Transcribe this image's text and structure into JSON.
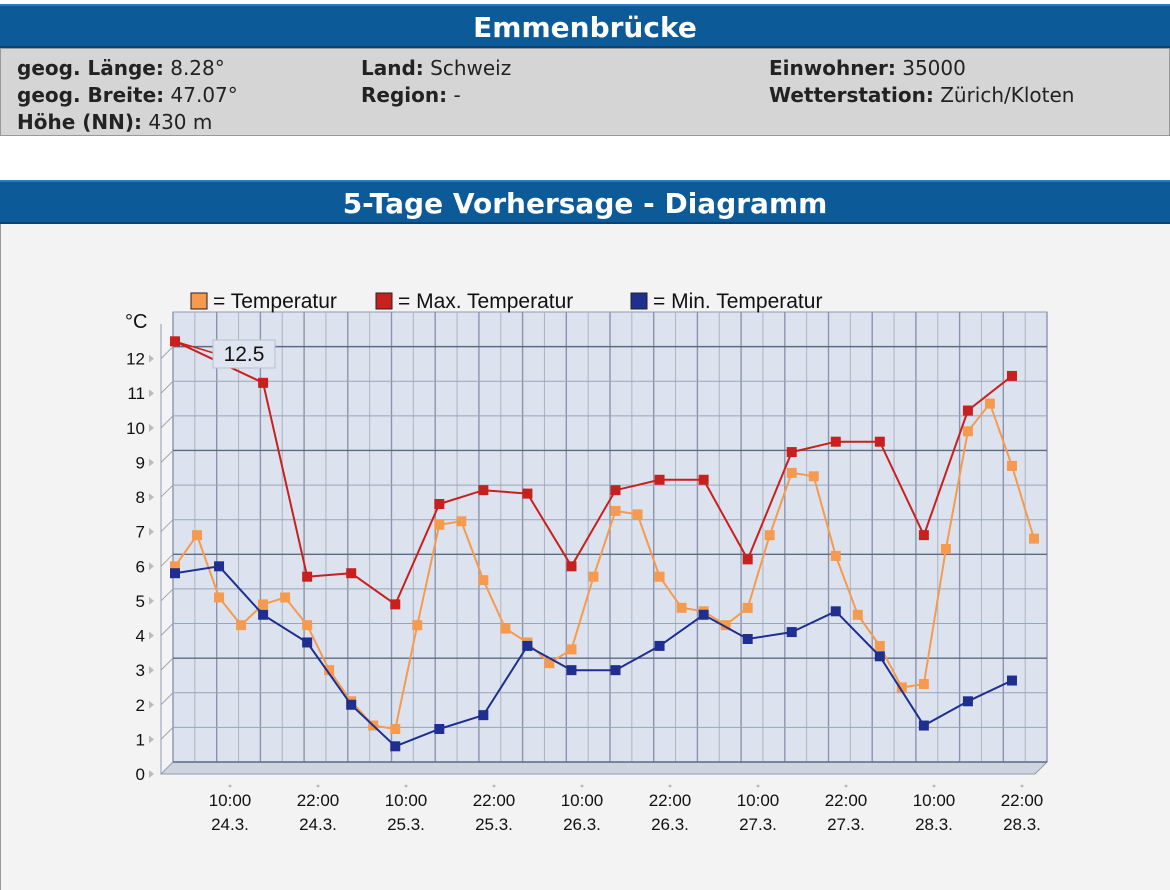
{
  "location": {
    "title": "Emmenbrücke",
    "info": {
      "col1": [
        {
          "label": "geog. Länge:",
          "value": "8.28°"
        },
        {
          "label": "geog. Breite:",
          "value": "47.07°"
        },
        {
          "label": "Höhe (NN):",
          "value": "430 m"
        }
      ],
      "col2": [
        {
          "label": "Land:",
          "value": "Schweiz"
        },
        {
          "label": "Region:",
          "value": "-"
        }
      ],
      "col3": [
        {
          "label": "Einwohner:",
          "value": "35000"
        },
        {
          "label": "Wetterstation:",
          "value": "Zürich/Kloten"
        }
      ]
    }
  },
  "chart_panel": {
    "title": "5-Tage Vorhersage - Diagramm"
  },
  "chart_data": {
    "type": "line",
    "ylabel": "°C",
    "ylim": [
      0,
      13
    ],
    "yticks": [
      "0",
      "1",
      "2",
      "3",
      "4",
      "5",
      "6",
      "7",
      "8",
      "9",
      "10",
      "11",
      "12"
    ],
    "x_tick_labels": [
      [
        "10:00",
        "24.3."
      ],
      [
        "22:00",
        "24.3."
      ],
      [
        "10:00",
        "25.3."
      ],
      [
        "22:00",
        "25.3."
      ],
      [
        "10:00",
        "26.3."
      ],
      [
        "22:00",
        "26.3."
      ],
      [
        "10:00",
        "27.3."
      ],
      [
        "22:00",
        "27.3."
      ],
      [
        "10:00",
        "28.3."
      ],
      [
        "22:00",
        "28.3."
      ]
    ],
    "grid": true,
    "legend_position": "top",
    "annotation": {
      "text": "12.5",
      "target": "Max. Temperatur",
      "index": 0
    },
    "series": [
      {
        "name": "Temperatur",
        "color": "#f59a4f",
        "values": [
          6.0,
          6.9,
          5.1,
          4.3,
          4.9,
          5.1,
          4.3,
          3.0,
          2.1,
          1.4,
          1.3,
          4.3,
          7.2,
          7.3,
          5.6,
          4.2,
          3.8,
          3.2,
          3.6,
          5.7,
          7.6,
          7.5,
          5.7,
          4.8,
          4.7,
          4.3,
          4.8,
          6.9,
          8.7,
          8.6,
          6.3,
          4.6,
          3.7,
          2.5,
          2.6,
          6.5,
          9.9,
          10.7,
          8.9,
          6.8
        ]
      },
      {
        "name": "Max. Temperatur",
        "color": "#c8201e",
        "points": [
          [
            0,
            12.5
          ],
          [
            4,
            11.3
          ],
          [
            6,
            5.7
          ],
          [
            8,
            5.8
          ],
          [
            10,
            4.9
          ],
          [
            12,
            7.8
          ],
          [
            14,
            8.2
          ],
          [
            16,
            8.1
          ],
          [
            18,
            6.0
          ],
          [
            20,
            8.2
          ],
          [
            22,
            8.5
          ],
          [
            24,
            8.5
          ],
          [
            26,
            6.2
          ],
          [
            28,
            9.3
          ],
          [
            30,
            9.6
          ],
          [
            32,
            9.6
          ],
          [
            34,
            6.9
          ],
          [
            36,
            10.5
          ],
          [
            38,
            11.5
          ]
        ]
      },
      {
        "name": "Min. Temperatur",
        "color": "#1e2f8f",
        "points": [
          [
            0,
            5.8
          ],
          [
            2,
            6.0
          ],
          [
            4,
            4.6
          ],
          [
            6,
            3.8
          ],
          [
            8,
            2.0
          ],
          [
            10,
            0.8
          ],
          [
            12,
            1.3
          ],
          [
            14,
            1.7
          ],
          [
            16,
            3.7
          ],
          [
            18,
            3.0
          ],
          [
            20,
            3.0
          ],
          [
            22,
            3.7
          ],
          [
            24,
            4.6
          ],
          [
            26,
            3.9
          ],
          [
            28,
            4.1
          ],
          [
            30,
            4.7
          ],
          [
            32,
            3.4
          ],
          [
            34,
            1.4
          ],
          [
            36,
            2.1
          ],
          [
            38,
            2.7
          ]
        ]
      }
    ]
  }
}
